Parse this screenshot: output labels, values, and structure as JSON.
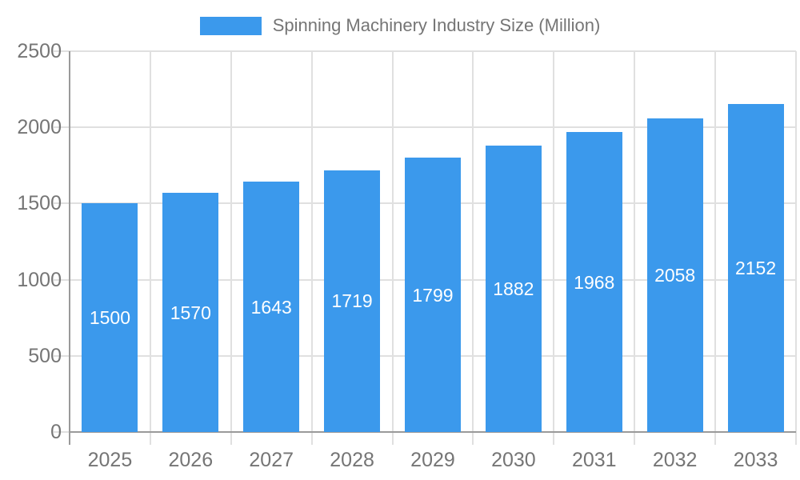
{
  "legend": {
    "label": "Spinning Machinery Industry Size (Million)"
  },
  "colors": {
    "bar": "#3B99EC",
    "bar_label": "#FFFFFF",
    "axis_line": "#9A9A9A",
    "gridline": "#E0E0E0",
    "axis_text": "#757575",
    "legend_text": "#757575",
    "background": "#FFFFFF"
  },
  "chart_data": {
    "type": "bar",
    "title": "Spinning Machinery Industry Size (Million)",
    "categories": [
      "2025",
      "2026",
      "2027",
      "2028",
      "2029",
      "2030",
      "2031",
      "2032",
      "2033"
    ],
    "values": [
      1500,
      1570,
      1643,
      1719,
      1799,
      1882,
      1968,
      2058,
      2152
    ],
    "xlabel": "",
    "ylabel": "",
    "ylim": [
      0,
      2500
    ],
    "yticks": [
      0,
      500,
      1000,
      1500,
      2000,
      2500
    ],
    "grid": true,
    "legend_position": "top",
    "bar_value_labels": "centered-inside-white"
  }
}
